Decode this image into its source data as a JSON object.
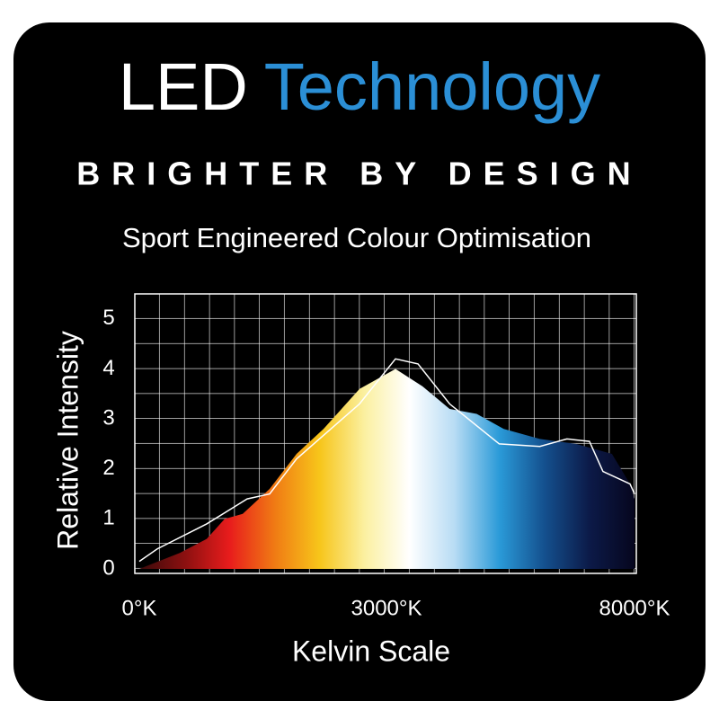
{
  "chart_data": {
    "type": "area",
    "title": "LED",
    "title_accent": "Technology",
    "tagline": "BRIGHTER BY DESIGN",
    "subtitle": "Sport Engineered Colour Optimisation",
    "y_label": "Relative Intensity",
    "x_label": "Kelvin Scale",
    "xlim": [
      0,
      8000
    ],
    "xticks": [
      {
        "value": 0,
        "label": "0°K"
      },
      {
        "value": 3000,
        "label": "3000°K"
      },
      {
        "value": 8000,
        "label": "8000°K"
      }
    ],
    "ylim": [
      0,
      5.5
    ],
    "yticks": [
      0,
      1,
      2,
      3,
      4,
      5
    ],
    "grid": true,
    "series": [
      {
        "type": "area",
        "colors": [
          "#3a0a0a",
          "#8a1010",
          "#e81c1c",
          "#f07a14",
          "#f7c51a",
          "#fbf0a0",
          "#ffffff",
          "#b8dcf4",
          "#2a9ad8",
          "#14508e",
          "#0c1a48",
          "#06061e"
        ],
        "x": [
          0,
          491,
          818,
          1036,
          1255,
          1582,
          1909,
          2236,
          2455,
          2673,
          3182,
          3727,
          4273,
          4818,
          5364,
          6091,
          6818,
          7545,
          7909,
          8000
        ],
        "values": [
          0,
          0.32,
          0.6,
          1.0,
          1.1,
          1.6,
          2.3,
          2.8,
          3.2,
          3.6,
          4.0,
          3.65,
          3.2,
          3.1,
          2.8,
          2.6,
          2.5,
          2.3,
          1.7,
          1.4
        ]
      },
      {
        "type": "line",
        "color": "#ffffff",
        "x": [
          0,
          218,
          818,
          1309,
          1582,
          1909,
          2673,
          3182,
          3636,
          4273,
          5273,
          6091,
          6636,
          7091,
          7364,
          7909,
          8000
        ],
        "values": [
          0.15,
          0.4,
          0.9,
          1.4,
          1.5,
          2.2,
          3.3,
          4.2,
          4.1,
          3.3,
          2.5,
          2.45,
          2.6,
          2.55,
          1.95,
          1.7,
          1.5
        ]
      }
    ]
  }
}
